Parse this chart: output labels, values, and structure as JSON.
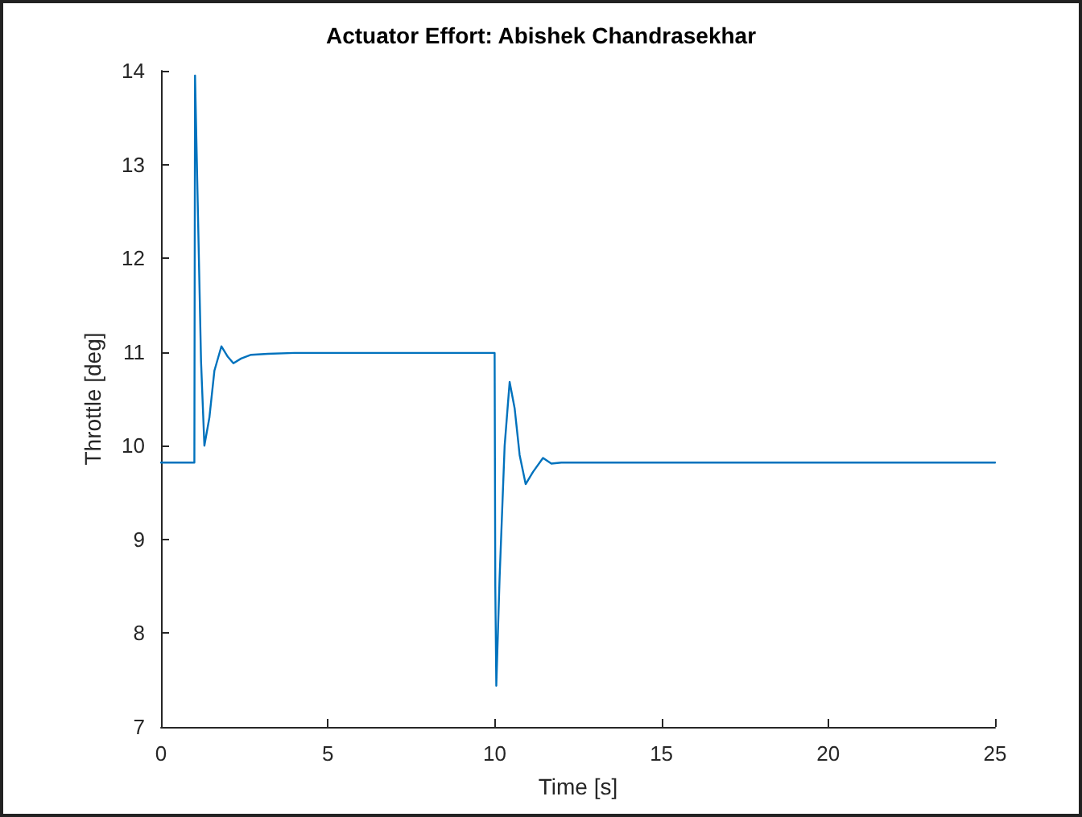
{
  "chart_data": {
    "type": "line",
    "title": "Actuator Effort: Abishek Chandrasekhar",
    "xlabel": "Time [s]",
    "ylabel": "Throttle [deg]",
    "xlim": [
      0,
      25
    ],
    "xticks": [
      0,
      5,
      10,
      15,
      20,
      25
    ],
    "ylim": [
      7,
      14
    ],
    "yticks": [
      7,
      8,
      9,
      10,
      11,
      12,
      13,
      14
    ],
    "grid": false,
    "marker": "none",
    "line_style": "solid",
    "series": [
      {
        "color": "#0072bd",
        "x": [
          0,
          1,
          1.02,
          1.1,
          1.2,
          1.3,
          1.45,
          1.6,
          1.81,
          2.0,
          2.17,
          2.4,
          2.7,
          3.2,
          4,
          10,
          10.02,
          10.05,
          10.15,
          10.3,
          10.45,
          10.6,
          10.75,
          10.93,
          11.15,
          11.45,
          11.7,
          12,
          13,
          25
        ],
        "values": [
          9.82,
          9.82,
          13.95,
          12.6,
          10.9,
          10.0,
          10.3,
          10.8,
          11.06,
          10.95,
          10.88,
          10.93,
          10.97,
          10.98,
          10.99,
          10.99,
          8.5,
          7.44,
          8.6,
          10.0,
          10.68,
          10.4,
          9.9,
          9.59,
          9.72,
          9.87,
          9.81,
          9.82,
          9.82,
          9.82
        ]
      }
    ]
  }
}
